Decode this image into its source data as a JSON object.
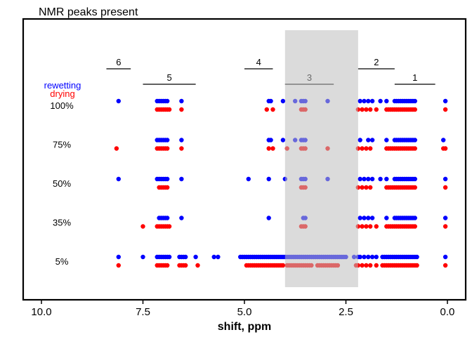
{
  "chart_data": {
    "type": "scatter",
    "title": "NMR peaks present",
    "xlabel": "shift, ppm",
    "xlim": [
      10.45,
      -0.45
    ],
    "x_reversed": true,
    "x_ticks": [
      10.0,
      7.5,
      5.0,
      2.5,
      0.0
    ],
    "x_tick_labels": [
      "10.0",
      "7.5",
      "5.0",
      "2.5",
      "0.0"
    ],
    "levels": [
      "100%",
      "75%",
      "50%",
      "35%",
      "5%"
    ],
    "legend": [
      {
        "label": "rewetting",
        "color": "#0000ff"
      },
      {
        "label": "drying",
        "color": "#ff0000"
      }
    ],
    "colors": {
      "rewetting": "#0000ff",
      "drying": "#ff0000",
      "shade": "#bebebe",
      "shade_label": "#777777"
    },
    "shaded_region": {
      "x": [
        4.0,
        2.2
      ],
      "label": "3"
    },
    "regions": [
      {
        "label": "6",
        "x": [
          8.4,
          7.8
        ]
      },
      {
        "label": "5",
        "x": [
          7.5,
          6.2
        ]
      },
      {
        "label": "4",
        "x": [
          5.0,
          4.3
        ]
      },
      {
        "label": "3",
        "x": [
          4.0,
          2.8
        ]
      },
      {
        "label": "2",
        "x": [
          2.2,
          1.3
        ]
      },
      {
        "label": "1",
        "x": [
          1.3,
          0.3
        ]
      }
    ],
    "series": [
      {
        "name": "rewetting",
        "level": "100%",
        "x": [
          8.1,
          7.15,
          7.1,
          7.05,
          7.0,
          6.95,
          6.9,
          6.55,
          4.4,
          4.35,
          4.05,
          3.75,
          3.6,
          3.55,
          3.5,
          2.95,
          2.15,
          2.05,
          1.95,
          1.85,
          1.65,
          1.5,
          1.3,
          1.25,
          1.2,
          1.15,
          1.1,
          1.05,
          1.0,
          0.95,
          0.9,
          0.85,
          0.8,
          0.05
        ]
      },
      {
        "name": "drying",
        "level": "100%",
        "x": [
          7.15,
          7.1,
          7.05,
          7.0,
          6.95,
          6.9,
          6.85,
          6.55,
          4.45,
          4.3,
          3.6,
          3.55,
          3.5,
          2.2,
          2.1,
          2.0,
          1.9,
          1.75,
          1.5,
          1.45,
          1.4,
          1.35,
          1.3,
          1.25,
          1.2,
          1.15,
          1.1,
          1.05,
          1.0,
          0.95,
          0.9,
          0.85,
          0.8,
          0.05
        ]
      },
      {
        "name": "rewetting",
        "level": "75%",
        "x": [
          7.15,
          7.1,
          7.05,
          7.0,
          6.95,
          6.9,
          6.55,
          4.4,
          4.35,
          4.05,
          3.75,
          3.6,
          3.55,
          3.5,
          2.15,
          1.95,
          1.85,
          1.5,
          1.3,
          1.25,
          1.2,
          1.15,
          1.1,
          1.05,
          1.0,
          0.95,
          0.9,
          0.85,
          0.8,
          0.1
        ]
      },
      {
        "name": "drying",
        "level": "75%",
        "x": [
          8.15,
          7.15,
          7.1,
          7.05,
          7.0,
          6.95,
          6.9,
          6.55,
          4.4,
          4.3,
          3.95,
          3.6,
          3.55,
          3.5,
          2.95,
          2.2,
          2.1,
          2.0,
          1.9,
          1.5,
          1.45,
          1.4,
          1.35,
          1.3,
          1.25,
          1.2,
          1.15,
          1.1,
          1.05,
          1.0,
          0.95,
          0.9,
          0.85,
          0.8,
          0.1,
          0.05
        ]
      },
      {
        "name": "rewetting",
        "level": "50%",
        "x": [
          8.1,
          7.15,
          7.1,
          7.05,
          7.0,
          6.95,
          6.9,
          6.55,
          4.9,
          4.4,
          4.0,
          3.6,
          3.55,
          3.5,
          2.95,
          2.15,
          2.05,
          1.95,
          1.85,
          1.65,
          1.5,
          1.3,
          1.25,
          1.2,
          1.15,
          1.1,
          1.05,
          1.0,
          0.95,
          0.9,
          0.85,
          0.8,
          0.05
        ]
      },
      {
        "name": "drying",
        "level": "50%",
        "x": [
          7.1,
          7.05,
          7.0,
          6.95,
          6.9,
          3.6,
          3.55,
          3.5,
          2.2,
          2.1,
          2.0,
          1.9,
          1.5,
          1.45,
          1.4,
          1.35,
          1.3,
          1.25,
          1.2,
          1.15,
          1.1,
          1.05,
          1.0,
          0.95,
          0.9,
          0.85,
          0.8,
          0.05
        ]
      },
      {
        "name": "rewetting",
        "level": "35%",
        "x": [
          7.1,
          7.05,
          7.0,
          6.95,
          6.9,
          6.55,
          4.4,
          3.55,
          3.5,
          2.15,
          2.05,
          1.95,
          1.85,
          1.5,
          1.3,
          1.25,
          1.2,
          1.15,
          1.1,
          1.05,
          1.0,
          0.95,
          0.9,
          0.85,
          0.8,
          0.05
        ]
      },
      {
        "name": "drying",
        "level": "35%",
        "x": [
          7.5,
          7.15,
          7.1,
          7.05,
          7.0,
          6.95,
          6.9,
          6.85,
          3.6,
          3.55,
          3.5,
          2.2,
          2.1,
          2.0,
          1.9,
          1.75,
          1.5,
          1.45,
          1.4,
          1.35,
          1.3,
          1.25,
          1.2,
          1.15,
          1.1,
          1.05,
          1.0,
          0.95,
          0.9,
          0.85,
          0.8,
          0.05
        ]
      },
      {
        "name": "rewetting",
        "level": "5%",
        "x": [
          8.1,
          7.5,
          7.15,
          7.1,
          7.05,
          7.0,
          6.95,
          6.9,
          6.85,
          6.6,
          6.55,
          6.5,
          6.45,
          6.2,
          5.75,
          5.65,
          5.1,
          5.05,
          5.0,
          4.95,
          4.9,
          4.85,
          4.8,
          4.75,
          4.7,
          4.65,
          4.6,
          4.55,
          4.5,
          4.45,
          4.4,
          4.35,
          4.3,
          4.25,
          4.2,
          4.15,
          4.1,
          4.05,
          4.0,
          3.95,
          3.9,
          3.85,
          3.8,
          3.75,
          3.7,
          3.65,
          3.6,
          3.55,
          3.5,
          3.45,
          3.4,
          3.35,
          3.3,
          3.25,
          3.2,
          3.15,
          3.1,
          3.05,
          3.0,
          2.95,
          2.9,
          2.85,
          2.8,
          2.75,
          2.7,
          2.65,
          2.6,
          2.55,
          2.5,
          2.3,
          2.2,
          2.15,
          2.05,
          1.95,
          1.85,
          1.75,
          1.6,
          1.55,
          1.5,
          1.45,
          1.4,
          1.35,
          1.3,
          1.25,
          1.2,
          1.15,
          1.1,
          1.05,
          1.0,
          0.95,
          0.9,
          0.85,
          0.8,
          0.75,
          0.05
        ]
      },
      {
        "name": "drying",
        "level": "5%",
        "x": [
          8.1,
          7.15,
          7.1,
          7.05,
          7.0,
          6.95,
          6.9,
          6.6,
          6.55,
          6.5,
          6.45,
          6.15,
          4.95,
          4.9,
          4.85,
          4.8,
          4.75,
          4.7,
          4.65,
          4.6,
          4.55,
          4.5,
          4.45,
          4.4,
          4.35,
          4.3,
          4.25,
          4.2,
          4.15,
          4.1,
          4.05,
          3.95,
          3.9,
          3.85,
          3.8,
          3.75,
          3.7,
          3.65,
          3.6,
          3.55,
          3.5,
          3.45,
          3.4,
          3.35,
          3.2,
          3.15,
          3.1,
          3.05,
          3.0,
          2.95,
          2.9,
          2.85,
          2.8,
          2.75,
          2.7,
          2.25,
          2.2,
          2.1,
          2.0,
          1.9,
          1.75,
          1.6,
          1.55,
          1.5,
          1.45,
          1.4,
          1.35,
          1.3,
          1.25,
          1.2,
          1.15,
          1.1,
          1.05,
          1.0,
          0.95,
          0.9,
          0.85,
          0.8,
          0.75,
          0.05
        ]
      }
    ]
  }
}
